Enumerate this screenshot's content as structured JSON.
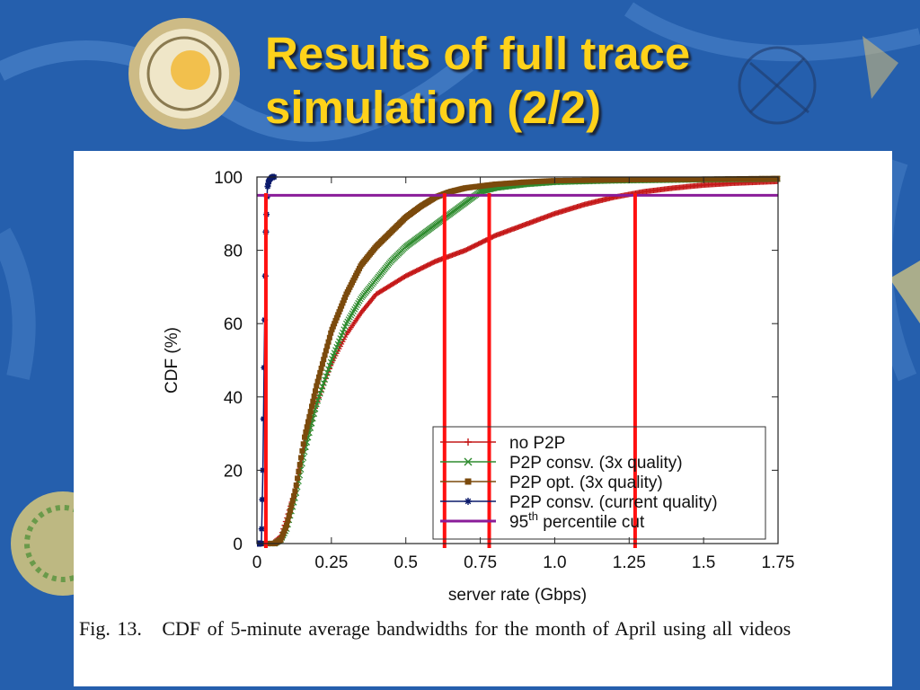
{
  "slide": {
    "title_line1": "Results of full trace",
    "title_line2": "simulation (2/2)",
    "caption": "Fig. 13.   CDF of 5-minute average bandwidths for the month of April using all videos"
  },
  "theme": {
    "background": "#2a67b8",
    "title_color": "#ffd21a"
  },
  "chart_data": {
    "type": "line",
    "xlabel": "server rate (Gbps)",
    "ylabel": "CDF (%)",
    "xlim": [
      0,
      1.75
    ],
    "ylim": [
      0,
      100
    ],
    "xticks": [
      0,
      0.25,
      0.5,
      0.75,
      1.0,
      1.25,
      1.5,
      1.75
    ],
    "xtick_labels": [
      "0",
      "0.25",
      "0.5",
      "0.75",
      "1.0",
      "1.25",
      "1.5",
      "1.75"
    ],
    "yticks": [
      0,
      20,
      40,
      60,
      80,
      100
    ],
    "ytick_labels": [
      "0",
      "20",
      "40",
      "60",
      "80",
      "100"
    ],
    "grid": false,
    "legend_position": "bottom-right",
    "series": [
      {
        "name": "no P2P",
        "marker": "plus",
        "color": "#c41818",
        "x": [
          0.0,
          0.05,
          0.08,
          0.1,
          0.13,
          0.16,
          0.2,
          0.25,
          0.3,
          0.35,
          0.4,
          0.5,
          0.6,
          0.7,
          0.8,
          0.9,
          1.0,
          1.1,
          1.2,
          1.3,
          1.4,
          1.5,
          1.6,
          1.75
        ],
        "y": [
          0,
          0,
          2,
          7,
          15,
          27,
          38,
          49,
          57,
          63,
          68,
          73,
          77,
          80,
          84,
          87,
          90,
          92.5,
          94.5,
          96,
          97,
          97.8,
          98.3,
          98.8
        ]
      },
      {
        "name": "P2P consv. (3x quality)",
        "marker": "x",
        "color": "#2e8b2e",
        "x": [
          0.0,
          0.06,
          0.08,
          0.1,
          0.13,
          0.16,
          0.2,
          0.25,
          0.3,
          0.35,
          0.4,
          0.45,
          0.5,
          0.55,
          0.6,
          0.65,
          0.7,
          0.75,
          0.8,
          0.9,
          1.0,
          1.2,
          1.5,
          1.75
        ],
        "y": [
          0,
          0,
          1,
          4,
          13,
          25,
          38,
          50,
          60,
          67,
          72,
          77,
          81,
          84,
          87,
          90,
          93,
          96,
          97,
          98,
          98.6,
          99,
          99.3,
          99.5
        ]
      },
      {
        "name": "P2P opt. (3x quality)",
        "marker": "square",
        "color": "#7b4a0c",
        "x": [
          0.0,
          0.06,
          0.08,
          0.1,
          0.13,
          0.16,
          0.2,
          0.25,
          0.3,
          0.35,
          0.4,
          0.45,
          0.5,
          0.55,
          0.6,
          0.65,
          0.7,
          0.8,
          0.9,
          1.0,
          1.2,
          1.5,
          1.75
        ],
        "y": [
          0,
          0,
          1,
          5,
          15,
          29,
          43,
          58,
          68,
          76,
          81,
          85,
          89,
          92,
          94.5,
          96,
          97,
          98,
          98.6,
          99,
          99.2,
          99.4,
          99.6
        ]
      },
      {
        "name": "P2P consv. (current quality)",
        "marker": "star",
        "color": "#0b1a6b",
        "x": [
          0.0,
          0.015,
          0.02,
          0.025,
          0.03,
          0.035,
          0.04,
          0.05,
          0.06
        ],
        "y": [
          0,
          0,
          20,
          55,
          85,
          97,
          99,
          100,
          100
        ]
      },
      {
        "name": "95th percentile cut",
        "name_base": "95",
        "name_sup": "th",
        "name_rest": " percentile cut",
        "marker": "none",
        "color": "#8a1c99",
        "x": [
          0,
          1.75
        ],
        "y": [
          95,
          95
        ]
      }
    ],
    "annotations": {
      "vertical_cut_lines_x": [
        0.03,
        0.63,
        0.78,
        1.27
      ],
      "vertical_cut_color": "#ff1010"
    }
  }
}
